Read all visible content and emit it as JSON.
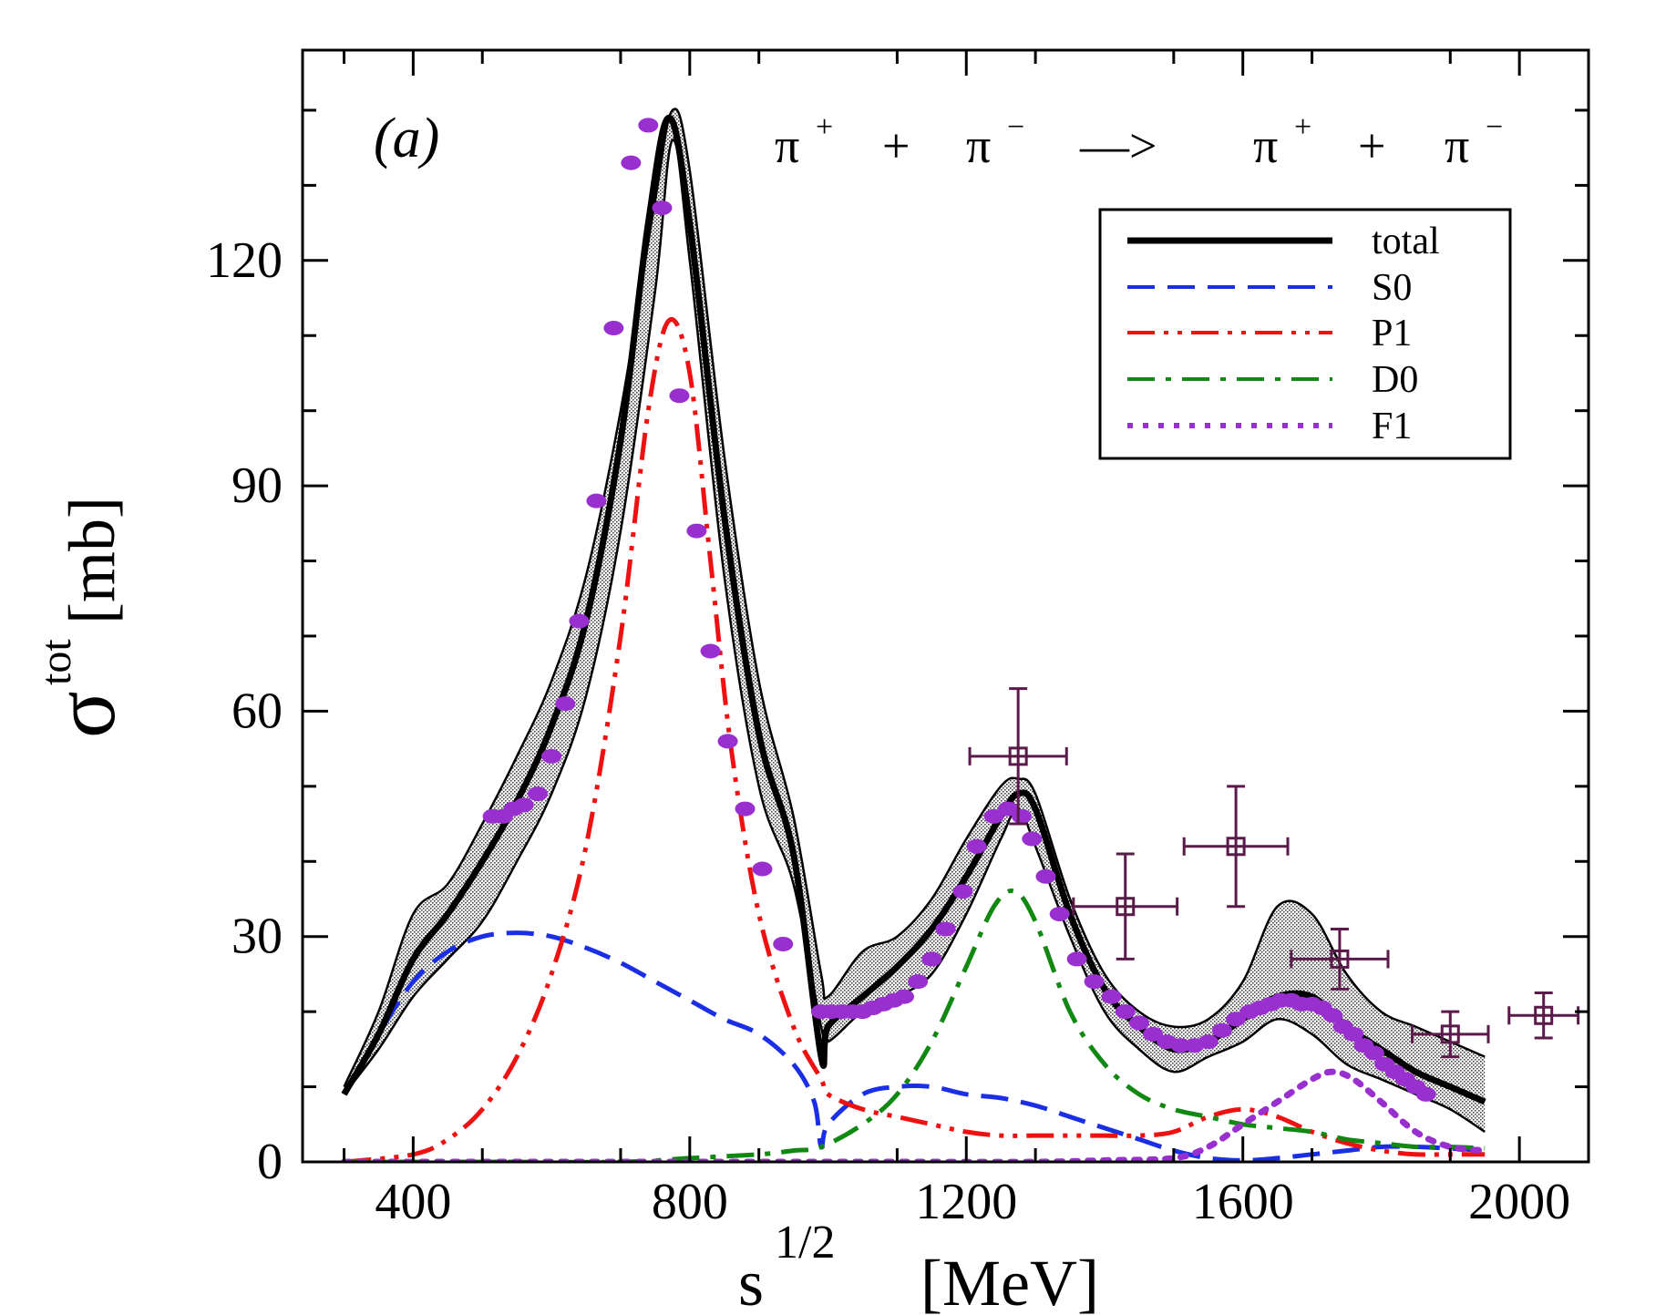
{
  "chart_data": {
    "type": "line",
    "panel_label": "(a)",
    "reaction": {
      "lhs1": "π",
      "lhs1_charge": "+",
      "plus1": "+",
      "lhs2": "π",
      "lhs2_charge": "−",
      "arrow": "—>",
      "rhs1": "π",
      "rhs1_charge": "+",
      "plus2": "+",
      "rhs2": "π",
      "rhs2_charge": "−"
    },
    "xlabel": {
      "base": "s",
      "sup": "1/2",
      "unit": "[MeV]"
    },
    "ylabel": {
      "base": "σ",
      "sup": "tot",
      "unit": "[mb]"
    },
    "xlim": [
      240,
      2100
    ],
    "ylim": [
      0,
      148
    ],
    "xticks": [
      400,
      800,
      1200,
      1600,
      2000
    ],
    "xtick_labels": [
      "400",
      "800",
      "1200",
      "1600",
      "2000"
    ],
    "yticks": [
      0,
      30,
      60,
      90,
      120
    ],
    "ytick_labels": [
      "0",
      "30",
      "60",
      "90",
      "120"
    ],
    "grid": false,
    "legend_position": "top-right",
    "colors": {
      "total": "#000000",
      "S0": "#1a2ee6",
      "P1": "#ee1111",
      "D0": "#118811",
      "F1": "#9a2fd0",
      "data": "#5a1a4a",
      "band": "#888888"
    },
    "band": {
      "name": "uncertainty band",
      "x": [
        300,
        350,
        400,
        450,
        500,
        550,
        600,
        650,
        700,
        750,
        775,
        800,
        850,
        900,
        950,
        990,
        1000,
        1050,
        1100,
        1150,
        1200,
        1250,
        1275,
        1300,
        1350,
        1400,
        1450,
        1500,
        1550,
        1600,
        1650,
        1700,
        1750,
        1800,
        1850,
        1900,
        1950
      ],
      "upper": [
        10,
        20,
        33,
        37,
        45,
        54,
        64,
        78,
        100,
        128,
        140,
        132,
        94,
        64,
        46,
        25,
        22,
        28,
        30,
        35,
        43,
        50,
        51,
        49,
        35,
        25,
        20,
        18,
        19,
        24,
        34,
        33,
        25,
        20,
        18,
        16,
        14
      ],
      "lower": [
        9,
        15,
        22,
        27,
        32,
        40,
        49,
        62,
        84,
        116,
        136,
        120,
        78,
        50,
        37,
        18,
        16,
        20,
        22,
        25,
        33,
        43,
        47,
        42,
        30,
        20,
        15,
        12,
        14,
        16,
        19,
        17,
        13,
        11,
        9,
        7,
        4
      ]
    },
    "series": [
      {
        "name": "total",
        "legend": "total",
        "style": "solid",
        "x": [
          300,
          350,
          400,
          450,
          500,
          550,
          600,
          650,
          700,
          740,
          770,
          800,
          850,
          900,
          950,
          990,
          1000,
          1050,
          1100,
          1150,
          1200,
          1250,
          1275,
          1300,
          1350,
          1400,
          1450,
          1500,
          1550,
          1600,
          1650,
          1700,
          1750,
          1800,
          1850,
          1900,
          1950
        ],
        "y": [
          9,
          17,
          27,
          33,
          40,
          48,
          58,
          72,
          96,
          125,
          139,
          125,
          86,
          57,
          41,
          14,
          18,
          22,
          26,
          31,
          38,
          46,
          49,
          47,
          33,
          23,
          18,
          15,
          16,
          19,
          22,
          22,
          18,
          15,
          12,
          10,
          8
        ]
      },
      {
        "name": "S0",
        "legend": "S0",
        "style": "dashed",
        "x": [
          300,
          350,
          400,
          450,
          500,
          550,
          600,
          650,
          700,
          750,
          800,
          850,
          900,
          950,
          980,
          990,
          1000,
          1050,
          1100,
          1150,
          1200,
          1250,
          1300,
          1350,
          1400,
          1450,
          1500,
          1550,
          1600,
          1650,
          1700,
          1750,
          1800,
          1850,
          1900,
          1950
        ],
        "y": [
          9,
          17,
          24,
          28,
          30,
          30.5,
          30,
          28.5,
          26.5,
          24,
          21.5,
          19,
          17,
          13,
          8,
          2,
          5,
          9,
          10,
          10,
          9,
          8.5,
          7.5,
          6,
          4.5,
          3,
          1.5,
          0.5,
          0.2,
          0.5,
          1,
          1.5,
          2,
          2,
          1.8,
          1.5
        ]
      },
      {
        "name": "P1",
        "legend": "P1",
        "style": "dash-dot-dot",
        "x": [
          300,
          400,
          450,
          500,
          550,
          600,
          650,
          700,
          740,
          770,
          800,
          830,
          860,
          900,
          950,
          990,
          1000,
          1050,
          1100,
          1150,
          1200,
          1250,
          1300,
          1350,
          1400,
          1450,
          1500,
          1550,
          1600,
          1650,
          1700,
          1750,
          1800,
          1850,
          1900,
          1950
        ],
        "y": [
          0,
          1,
          3,
          7,
          14,
          25,
          42,
          70,
          100,
          112,
          105,
          80,
          55,
          33,
          18,
          11,
          9,
          7,
          6,
          5,
          4,
          3.5,
          3.5,
          3.5,
          3.5,
          3.5,
          4,
          6,
          7,
          6,
          4,
          2.5,
          1.5,
          1,
          1,
          1
        ]
      },
      {
        "name": "D0",
        "legend": "D0",
        "style": "dash-dot",
        "x": [
          300,
          500,
          700,
          800,
          900,
          950,
          990,
          1050,
          1100,
          1150,
          1200,
          1240,
          1270,
          1300,
          1350,
          1400,
          1450,
          1500,
          1550,
          1600,
          1650,
          1700,
          1750,
          1800,
          1850,
          1900,
          1950
        ],
        "y": [
          0,
          0,
          0,
          0.5,
          1,
          1.5,
          2,
          5,
          9,
          16,
          26,
          34,
          36,
          32,
          20,
          13,
          9,
          7,
          6,
          5,
          4.5,
          4,
          3,
          2.5,
          2,
          2,
          1.8
        ]
      },
      {
        "name": "F1",
        "legend": "F1",
        "style": "dotted",
        "x": [
          300,
          500,
          700,
          900,
          1100,
          1300,
          1400,
          1500,
          1550,
          1600,
          1650,
          1700,
          1730,
          1760,
          1800,
          1850,
          1900,
          1950
        ],
        "y": [
          0,
          0,
          0,
          0,
          0,
          0,
          0.2,
          0.5,
          2,
          5,
          8,
          11,
          12,
          11,
          8,
          4,
          2,
          1.5
        ]
      }
    ],
    "markers": {
      "name": "purple filled ellipses",
      "x": [
        515,
        530,
        545,
        560,
        580,
        600,
        620,
        640,
        665,
        690,
        715,
        740,
        760,
        785,
        810,
        830,
        855,
        880,
        905,
        935,
        990,
        1005,
        1020,
        1035,
        1050,
        1065,
        1080,
        1095,
        1110,
        1130,
        1150,
        1170,
        1195,
        1215,
        1240,
        1260,
        1280,
        1295,
        1315,
        1335,
        1360,
        1385,
        1410,
        1430,
        1450,
        1470,
        1490,
        1510,
        1530,
        1550,
        1570,
        1590,
        1610,
        1625,
        1640,
        1655,
        1670,
        1685,
        1700,
        1715,
        1730,
        1745,
        1760,
        1775,
        1790,
        1805,
        1820,
        1835,
        1850,
        1865
      ],
      "y": [
        46,
        46,
        47,
        47.5,
        49,
        54,
        61,
        72,
        88,
        111,
        133,
        138,
        127,
        102,
        84,
        68,
        56,
        47,
        39,
        29,
        20,
        20,
        20,
        20,
        20,
        20.5,
        21,
        21.5,
        22,
        24,
        27,
        31,
        36,
        42,
        46,
        47,
        46,
        43,
        38,
        33,
        27,
        24,
        22,
        20,
        18.5,
        17,
        16,
        15.5,
        15.5,
        16,
        17.5,
        19,
        20,
        20.5,
        21,
        21.5,
        21.5,
        21,
        21,
        20.5,
        19.5,
        18,
        17,
        15.5,
        14.5,
        13,
        12,
        11,
        10,
        9
      ]
    },
    "data_points": {
      "name": "experimental points",
      "x": [
        1275,
        1430,
        1590,
        1740,
        1900,
        2035
      ],
      "y": [
        54,
        34,
        42,
        27,
        17,
        19.5
      ],
      "xerr": [
        70,
        75,
        75,
        70,
        55,
        50
      ],
      "yerr": [
        9,
        7,
        8,
        4,
        3,
        3
      ]
    }
  }
}
